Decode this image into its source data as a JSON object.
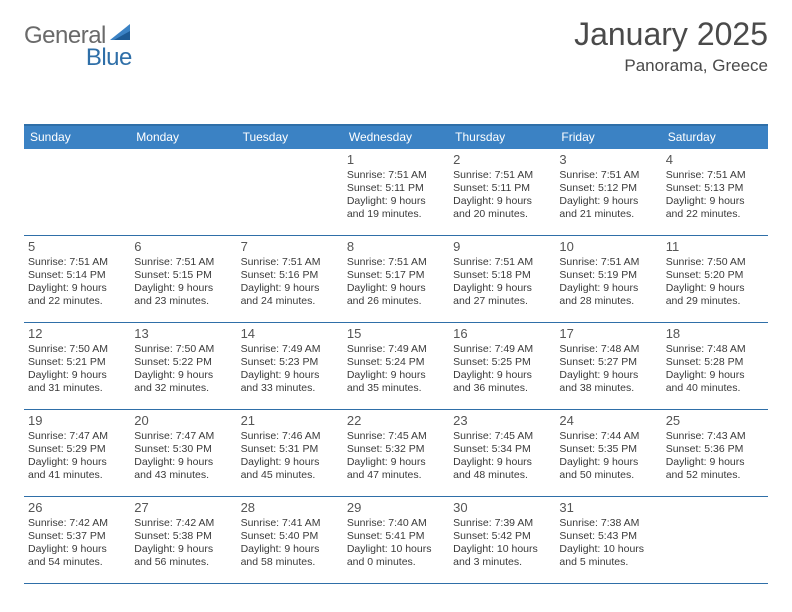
{
  "brand": {
    "part1": "General",
    "part2": "Blue"
  },
  "title": "January 2025",
  "location": "Panorama, Greece",
  "colors": {
    "header_bg": "#3b82c4",
    "border": "#2f6fa8",
    "brand_grey": "#6a6a6a",
    "brand_blue": "#2f6fa8",
    "text": "#3a3a3a"
  },
  "day_names": [
    "Sunday",
    "Monday",
    "Tuesday",
    "Wednesday",
    "Thursday",
    "Friday",
    "Saturday"
  ],
  "weeks": [
    [
      {
        "empty": true
      },
      {
        "empty": true
      },
      {
        "empty": true
      },
      {
        "n": "1",
        "sr": "7:51 AM",
        "ss": "5:11 PM",
        "dl": "9 hours and 19 minutes."
      },
      {
        "n": "2",
        "sr": "7:51 AM",
        "ss": "5:11 PM",
        "dl": "9 hours and 20 minutes."
      },
      {
        "n": "3",
        "sr": "7:51 AM",
        "ss": "5:12 PM",
        "dl": "9 hours and 21 minutes."
      },
      {
        "n": "4",
        "sr": "7:51 AM",
        "ss": "5:13 PM",
        "dl": "9 hours and 22 minutes."
      }
    ],
    [
      {
        "n": "5",
        "sr": "7:51 AM",
        "ss": "5:14 PM",
        "dl": "9 hours and 22 minutes."
      },
      {
        "n": "6",
        "sr": "7:51 AM",
        "ss": "5:15 PM",
        "dl": "9 hours and 23 minutes."
      },
      {
        "n": "7",
        "sr": "7:51 AM",
        "ss": "5:16 PM",
        "dl": "9 hours and 24 minutes."
      },
      {
        "n": "8",
        "sr": "7:51 AM",
        "ss": "5:17 PM",
        "dl": "9 hours and 26 minutes."
      },
      {
        "n": "9",
        "sr": "7:51 AM",
        "ss": "5:18 PM",
        "dl": "9 hours and 27 minutes."
      },
      {
        "n": "10",
        "sr": "7:51 AM",
        "ss": "5:19 PM",
        "dl": "9 hours and 28 minutes."
      },
      {
        "n": "11",
        "sr": "7:50 AM",
        "ss": "5:20 PM",
        "dl": "9 hours and 29 minutes."
      }
    ],
    [
      {
        "n": "12",
        "sr": "7:50 AM",
        "ss": "5:21 PM",
        "dl": "9 hours and 31 minutes."
      },
      {
        "n": "13",
        "sr": "7:50 AM",
        "ss": "5:22 PM",
        "dl": "9 hours and 32 minutes."
      },
      {
        "n": "14",
        "sr": "7:49 AM",
        "ss": "5:23 PM",
        "dl": "9 hours and 33 minutes."
      },
      {
        "n": "15",
        "sr": "7:49 AM",
        "ss": "5:24 PM",
        "dl": "9 hours and 35 minutes."
      },
      {
        "n": "16",
        "sr": "7:49 AM",
        "ss": "5:25 PM",
        "dl": "9 hours and 36 minutes."
      },
      {
        "n": "17",
        "sr": "7:48 AM",
        "ss": "5:27 PM",
        "dl": "9 hours and 38 minutes."
      },
      {
        "n": "18",
        "sr": "7:48 AM",
        "ss": "5:28 PM",
        "dl": "9 hours and 40 minutes."
      }
    ],
    [
      {
        "n": "19",
        "sr": "7:47 AM",
        "ss": "5:29 PM",
        "dl": "9 hours and 41 minutes."
      },
      {
        "n": "20",
        "sr": "7:47 AM",
        "ss": "5:30 PM",
        "dl": "9 hours and 43 minutes."
      },
      {
        "n": "21",
        "sr": "7:46 AM",
        "ss": "5:31 PM",
        "dl": "9 hours and 45 minutes."
      },
      {
        "n": "22",
        "sr": "7:45 AM",
        "ss": "5:32 PM",
        "dl": "9 hours and 47 minutes."
      },
      {
        "n": "23",
        "sr": "7:45 AM",
        "ss": "5:34 PM",
        "dl": "9 hours and 48 minutes."
      },
      {
        "n": "24",
        "sr": "7:44 AM",
        "ss": "5:35 PM",
        "dl": "9 hours and 50 minutes."
      },
      {
        "n": "25",
        "sr": "7:43 AM",
        "ss": "5:36 PM",
        "dl": "9 hours and 52 minutes."
      }
    ],
    [
      {
        "n": "26",
        "sr": "7:42 AM",
        "ss": "5:37 PM",
        "dl": "9 hours and 54 minutes."
      },
      {
        "n": "27",
        "sr": "7:42 AM",
        "ss": "5:38 PM",
        "dl": "9 hours and 56 minutes."
      },
      {
        "n": "28",
        "sr": "7:41 AM",
        "ss": "5:40 PM",
        "dl": "9 hours and 58 minutes."
      },
      {
        "n": "29",
        "sr": "7:40 AM",
        "ss": "5:41 PM",
        "dl": "10 hours and 0 minutes."
      },
      {
        "n": "30",
        "sr": "7:39 AM",
        "ss": "5:42 PM",
        "dl": "10 hours and 3 minutes."
      },
      {
        "n": "31",
        "sr": "7:38 AM",
        "ss": "5:43 PM",
        "dl": "10 hours and 5 minutes."
      },
      {
        "empty": true
      }
    ]
  ],
  "labels": {
    "sunrise": "Sunrise:",
    "sunset": "Sunset:",
    "daylight": "Daylight:"
  }
}
